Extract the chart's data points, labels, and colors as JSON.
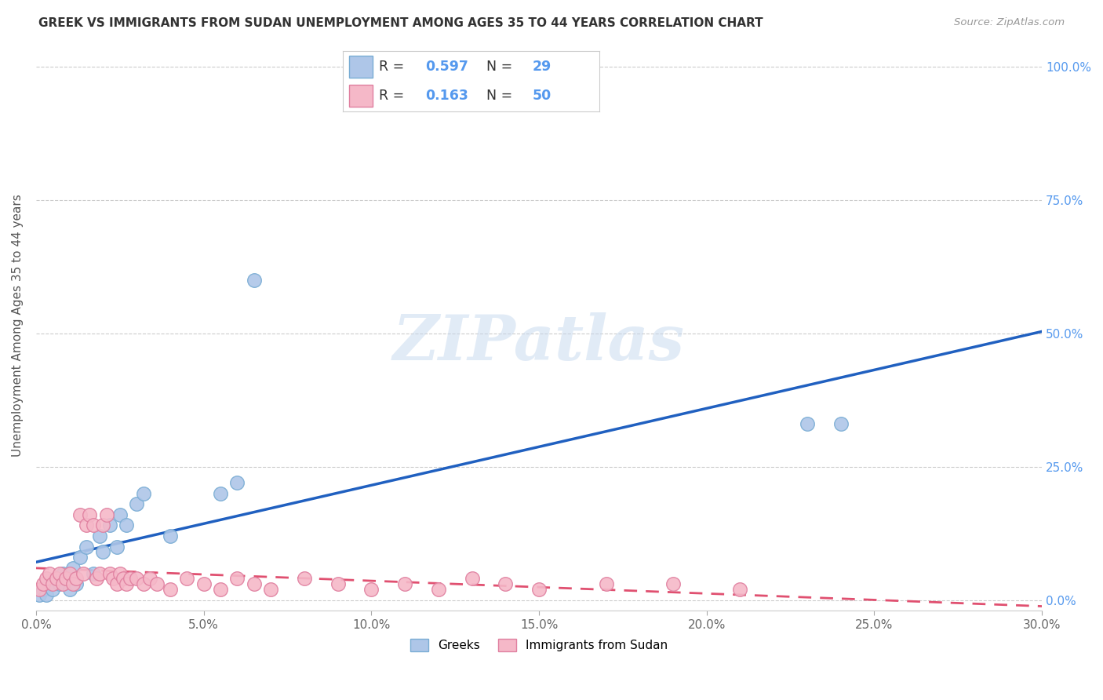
{
  "title": "GREEK VS IMMIGRANTS FROM SUDAN UNEMPLOYMENT AMONG AGES 35 TO 44 YEARS CORRELATION CHART",
  "source": "Source: ZipAtlas.com",
  "ylabel": "Unemployment Among Ages 35 to 44 years",
  "xlim": [
    0.0,
    0.3
  ],
  "ylim": [
    -0.02,
    1.05
  ],
  "xticks": [
    0.0,
    0.05,
    0.1,
    0.15,
    0.2,
    0.25,
    0.3
  ],
  "yticks": [
    0.0,
    0.25,
    0.5,
    0.75,
    1.0
  ],
  "ytick_labels": [
    "0.0%",
    "25.0%",
    "50.0%",
    "75.0%",
    "100.0%"
  ],
  "xtick_labels": [
    "0.0%",
    "5.0%",
    "10.0%",
    "15.0%",
    "20.0%",
    "25.0%",
    "30.0%"
  ],
  "watermark": "ZIPatlas",
  "greek_color": "#aec6e8",
  "greek_edge_color": "#7aadd4",
  "sudan_color": "#f5b8c8",
  "sudan_edge_color": "#e080a0",
  "greek_R": 0.597,
  "greek_N": 29,
  "sudan_R": 0.163,
  "sudan_N": 50,
  "legend_label_greek": "Greeks",
  "legend_label_sudan": "Immigrants from Sudan",
  "greek_scatter_x": [
    0.001,
    0.002,
    0.003,
    0.004,
    0.005,
    0.006,
    0.007,
    0.008,
    0.009,
    0.01,
    0.011,
    0.012,
    0.013,
    0.015,
    0.017,
    0.019,
    0.02,
    0.022,
    0.024,
    0.025,
    0.027,
    0.03,
    0.032,
    0.04,
    0.055,
    0.06,
    0.065,
    0.23,
    0.24
  ],
  "greek_scatter_y": [
    0.01,
    0.02,
    0.01,
    0.03,
    0.02,
    0.04,
    0.03,
    0.05,
    0.04,
    0.02,
    0.06,
    0.03,
    0.08,
    0.1,
    0.05,
    0.12,
    0.09,
    0.14,
    0.1,
    0.16,
    0.14,
    0.18,
    0.2,
    0.12,
    0.2,
    0.22,
    0.6,
    0.33,
    0.33
  ],
  "sudan_scatter_x": [
    0.001,
    0.002,
    0.003,
    0.004,
    0.005,
    0.006,
    0.007,
    0.008,
    0.009,
    0.01,
    0.011,
    0.012,
    0.013,
    0.014,
    0.015,
    0.016,
    0.017,
    0.018,
    0.019,
    0.02,
    0.021,
    0.022,
    0.023,
    0.024,
    0.025,
    0.026,
    0.027,
    0.028,
    0.03,
    0.032,
    0.034,
    0.036,
    0.04,
    0.045,
    0.05,
    0.055,
    0.06,
    0.065,
    0.07,
    0.08,
    0.09,
    0.1,
    0.11,
    0.12,
    0.13,
    0.14,
    0.15,
    0.17,
    0.19,
    0.21
  ],
  "sudan_scatter_y": [
    0.02,
    0.03,
    0.04,
    0.05,
    0.03,
    0.04,
    0.05,
    0.03,
    0.04,
    0.05,
    0.03,
    0.04,
    0.16,
    0.05,
    0.14,
    0.16,
    0.14,
    0.04,
    0.05,
    0.14,
    0.16,
    0.05,
    0.04,
    0.03,
    0.05,
    0.04,
    0.03,
    0.04,
    0.04,
    0.03,
    0.04,
    0.03,
    0.02,
    0.04,
    0.03,
    0.02,
    0.04,
    0.03,
    0.02,
    0.04,
    0.03,
    0.02,
    0.03,
    0.02,
    0.04,
    0.03,
    0.02,
    0.03,
    0.03,
    0.02
  ],
  "greek_line_color": "#2060c0",
  "sudan_line_color": "#e05070",
  "background_color": "#ffffff",
  "grid_color": "#cccccc",
  "right_tick_color": "#5599ee",
  "title_color": "#333333",
  "source_color": "#999999"
}
